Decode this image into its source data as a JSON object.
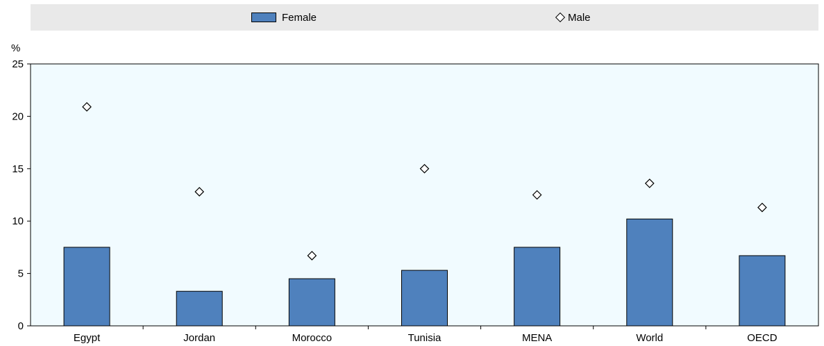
{
  "chart_data": {
    "type": "bar",
    "y_unit_label": "%",
    "categories": [
      "Egypt",
      "Jordan",
      "Morocco",
      "Tunisia",
      "MENA",
      "World",
      "OECD"
    ],
    "series": [
      {
        "name": "Female",
        "kind": "bar",
        "color": "#4f81bd",
        "values": [
          7.5,
          3.3,
          4.5,
          5.3,
          7.5,
          10.2,
          6.7
        ]
      },
      {
        "name": "Male",
        "kind": "marker",
        "marker": "diamond",
        "values": [
          20.9,
          12.8,
          6.7,
          15.0,
          12.5,
          13.6,
          11.3
        ]
      }
    ],
    "ylim": [
      0,
      25
    ],
    "yticks": [
      0,
      5,
      10,
      15,
      20,
      25
    ],
    "grid": false,
    "legend": "top",
    "plot_background": "#f1fbff"
  }
}
